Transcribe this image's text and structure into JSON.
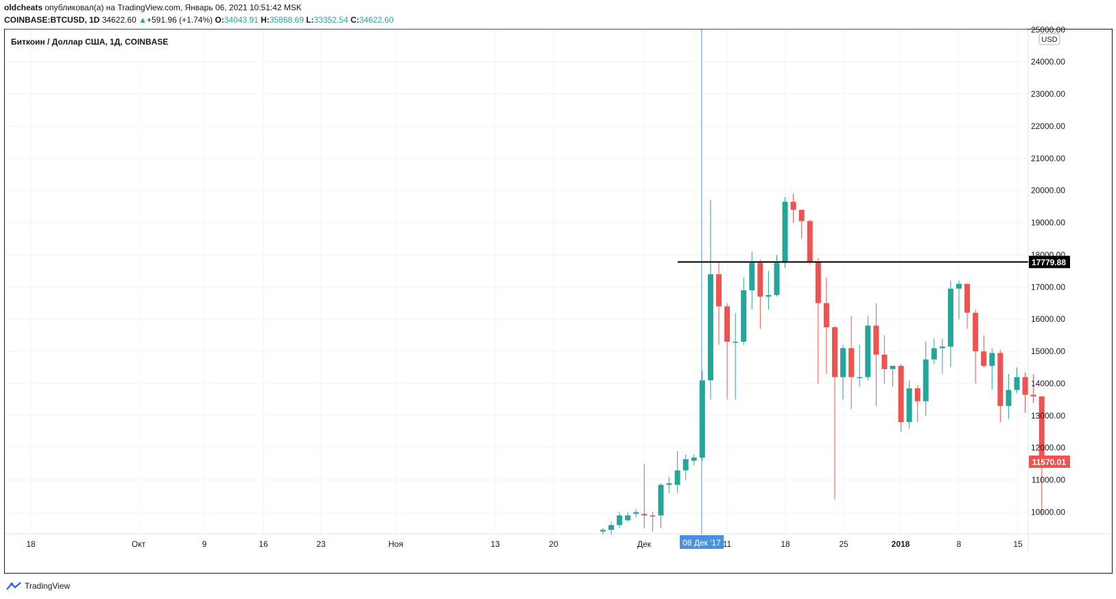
{
  "header": {
    "user": "oldcheats",
    "published": "опубликовал(а) на TradingView.com, Январь 06, 2021 10:51:42 MSK",
    "symbol": "COINBASE:BTCUSD, 1D",
    "last": "34622.60",
    "change": "+591.96 (+1.74%)",
    "o_label": "O:",
    "o_val": "34043.91",
    "h_label": "H:",
    "h_val": "35868.69",
    "l_label": "L:",
    "l_val": "33352.54",
    "c_label": "C:",
    "c_val": "34622.60"
  },
  "pane_title": "Биткоин / Доллар США, 1Д, COINBASE",
  "currency": "USD",
  "footer": {
    "brand": "TradingView"
  },
  "crosshair_label": "08 Дек '17",
  "colors": {
    "up": "#26a69a",
    "down": "#ef5350",
    "line": "#000000",
    "crosshair": "#4a90e2",
    "grid": "#f0f3fa"
  },
  "chart_data": {
    "type": "candlestick",
    "x_labels": [
      "18",
      "Окт",
      "9",
      "16",
      "23",
      "Ноя",
      "13",
      "20",
      "Дек",
      "11",
      "18",
      "25",
      "2018",
      "8",
      "15"
    ],
    "y_ticks": [
      "10000.00",
      "11000.00",
      "12000.00",
      "13000.00",
      "14000.00",
      "15000.00",
      "16000.00",
      "17000.00",
      "18000.00",
      "19000.00",
      "20000.00",
      "21000.00",
      "22000.00",
      "23000.00",
      "24000.00",
      "25000.00"
    ],
    "ylim": [
      9300,
      25000
    ],
    "horizontal_line": {
      "value": 17779.88,
      "label": "17779.88"
    },
    "last_price": {
      "value": 11570.01,
      "label": "11570.01"
    },
    "candles": [
      {
        "o": 9400,
        "h": 9500,
        "l": 9300,
        "c": 9450
      },
      {
        "o": 9450,
        "h": 9700,
        "l": 9300,
        "c": 9600
      },
      {
        "o": 9600,
        "h": 10000,
        "l": 9500,
        "c": 9900
      },
      {
        "o": 9750,
        "h": 10000,
        "l": 9700,
        "c": 9900
      },
      {
        "o": 9950,
        "h": 10100,
        "l": 9850,
        "c": 10000
      },
      {
        "o": 9950,
        "h": 11500,
        "l": 9500,
        "c": 9900
      },
      {
        "o": 9900,
        "h": 10000,
        "l": 9400,
        "c": 9880
      },
      {
        "o": 9900,
        "h": 10900,
        "l": 9500,
        "c": 10850
      },
      {
        "o": 10850,
        "h": 11100,
        "l": 10600,
        "c": 10900
      },
      {
        "o": 10850,
        "h": 11900,
        "l": 10600,
        "c": 11300
      },
      {
        "o": 11300,
        "h": 11800,
        "l": 11000,
        "c": 11650
      },
      {
        "o": 11600,
        "h": 11800,
        "l": 11450,
        "c": 11700
      },
      {
        "o": 11700,
        "h": 14400,
        "l": 11600,
        "c": 14100
      },
      {
        "o": 14100,
        "h": 19700,
        "l": 13500,
        "c": 17400
      },
      {
        "o": 17400,
        "h": 17800,
        "l": 15200,
        "c": 16400
      },
      {
        "o": 16400,
        "h": 16500,
        "l": 13500,
        "c": 15300
      },
      {
        "o": 15300,
        "h": 16200,
        "l": 13500,
        "c": 15300
      },
      {
        "o": 15300,
        "h": 17300,
        "l": 15200,
        "c": 16900
      },
      {
        "o": 16900,
        "h": 18100,
        "l": 16300,
        "c": 17750
      },
      {
        "o": 17750,
        "h": 17850,
        "l": 15700,
        "c": 16700
      },
      {
        "o": 16700,
        "h": 17500,
        "l": 16300,
        "c": 16750
      },
      {
        "o": 16750,
        "h": 18000,
        "l": 16700,
        "c": 17750
      },
      {
        "o": 17750,
        "h": 19800,
        "l": 17600,
        "c": 19650
      },
      {
        "o": 19650,
        "h": 19900,
        "l": 19000,
        "c": 19400
      },
      {
        "o": 19400,
        "h": 19400,
        "l": 18500,
        "c": 19050
      },
      {
        "o": 19050,
        "h": 19100,
        "l": 17700,
        "c": 17800
      },
      {
        "o": 17800,
        "h": 17900,
        "l": 14000,
        "c": 16500
      },
      {
        "o": 16500,
        "h": 17300,
        "l": 14300,
        "c": 15750
      },
      {
        "o": 15750,
        "h": 15800,
        "l": 10400,
        "c": 14200
      },
      {
        "o": 14200,
        "h": 15200,
        "l": 13500,
        "c": 15100
      },
      {
        "o": 15100,
        "h": 16100,
        "l": 13200,
        "c": 14200
      },
      {
        "o": 14200,
        "h": 15200,
        "l": 13900,
        "c": 14200
      },
      {
        "o": 14200,
        "h": 16100,
        "l": 14100,
        "c": 15800
      },
      {
        "o": 15800,
        "h": 16500,
        "l": 13300,
        "c": 14900
      },
      {
        "o": 14900,
        "h": 15500,
        "l": 14000,
        "c": 14450
      },
      {
        "o": 14450,
        "h": 14500,
        "l": 13900,
        "c": 14550
      },
      {
        "o": 14550,
        "h": 14600,
        "l": 12500,
        "c": 12800
      },
      {
        "o": 12800,
        "h": 14100,
        "l": 12600,
        "c": 13850
      },
      {
        "o": 13850,
        "h": 13950,
        "l": 12800,
        "c": 13450
      },
      {
        "o": 13450,
        "h": 15300,
        "l": 13000,
        "c": 14750
      },
      {
        "o": 14750,
        "h": 15400,
        "l": 14600,
        "c": 15100
      },
      {
        "o": 15100,
        "h": 15400,
        "l": 14300,
        "c": 15150
      },
      {
        "o": 15150,
        "h": 17200,
        "l": 14500,
        "c": 16950
      },
      {
        "o": 16950,
        "h": 17200,
        "l": 16000,
        "c": 17100
      },
      {
        "o": 17100,
        "h": 17100,
        "l": 15700,
        "c": 16200
      },
      {
        "o": 16200,
        "h": 16300,
        "l": 14000,
        "c": 15000
      },
      {
        "o": 15000,
        "h": 15500,
        "l": 14500,
        "c": 14550
      },
      {
        "o": 14550,
        "h": 15100,
        "l": 13800,
        "c": 14950
      },
      {
        "o": 14950,
        "h": 15050,
        "l": 12800,
        "c": 13300
      },
      {
        "o": 13300,
        "h": 14300,
        "l": 12900,
        "c": 13800
      },
      {
        "o": 13800,
        "h": 14500,
        "l": 13700,
        "c": 14200
      },
      {
        "o": 14200,
        "h": 14350,
        "l": 13100,
        "c": 13650
      },
      {
        "o": 13650,
        "h": 14300,
        "l": 13400,
        "c": 13600
      },
      {
        "o": 13600,
        "h": 13600,
        "l": 9900,
        "c": 11570.01
      }
    ]
  }
}
